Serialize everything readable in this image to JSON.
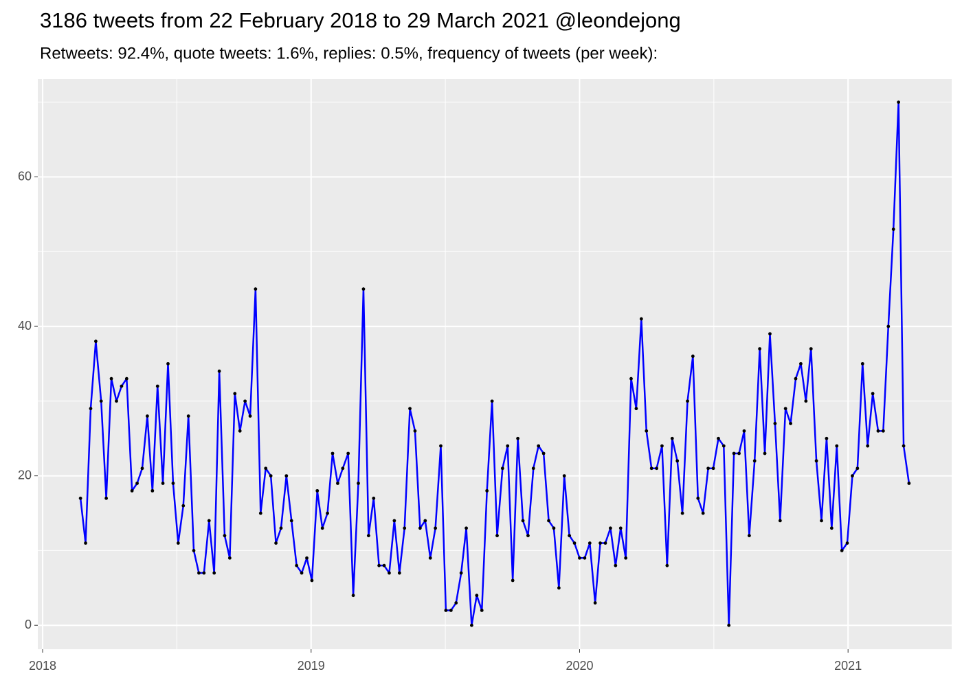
{
  "chart_data": {
    "type": "line",
    "title": "3186 tweets from 22 February 2018 to 29 March 2021 @leondejong",
    "subtitle": "Retweets: 92.4%, quote tweets: 1.6%, replies: 0.5%, frequency of tweets (per week):",
    "x": [
      2018.141,
      2018.16,
      2018.179,
      2018.198,
      2018.218,
      2018.237,
      2018.256,
      2018.275,
      2018.294,
      2018.313,
      2018.333,
      2018.352,
      2018.371,
      2018.39,
      2018.409,
      2018.428,
      2018.448,
      2018.467,
      2018.486,
      2018.505,
      2018.524,
      2018.543,
      2018.563,
      2018.582,
      2018.601,
      2018.62,
      2018.639,
      2018.658,
      2018.678,
      2018.697,
      2018.716,
      2018.735,
      2018.754,
      2018.773,
      2018.793,
      2018.812,
      2018.831,
      2018.85,
      2018.869,
      2018.888,
      2018.908,
      2018.927,
      2018.946,
      2018.965,
      2018.984,
      2019.003,
      2019.023,
      2019.042,
      2019.061,
      2019.08,
      2019.099,
      2019.118,
      2019.138,
      2019.157,
      2019.176,
      2019.195,
      2019.214,
      2019.233,
      2019.253,
      2019.272,
      2019.291,
      2019.31,
      2019.329,
      2019.348,
      2019.368,
      2019.387,
      2019.406,
      2019.425,
      2019.444,
      2019.463,
      2019.483,
      2019.502,
      2019.521,
      2019.54,
      2019.559,
      2019.578,
      2019.598,
      2019.617,
      2019.636,
      2019.655,
      2019.674,
      2019.693,
      2019.713,
      2019.732,
      2019.751,
      2019.77,
      2019.789,
      2019.808,
      2019.828,
      2019.847,
      2019.866,
      2019.885,
      2019.904,
      2019.923,
      2019.943,
      2019.962,
      2019.981,
      2020.0,
      2020.019,
      2020.038,
      2020.058,
      2020.077,
      2020.096,
      2020.115,
      2020.134,
      2020.153,
      2020.172,
      2020.192,
      2020.211,
      2020.23,
      2020.249,
      2020.268,
      2020.287,
      2020.307,
      2020.326,
      2020.345,
      2020.364,
      2020.383,
      2020.402,
      2020.422,
      2020.441,
      2020.46,
      2020.479,
      2020.498,
      2020.517,
      2020.537,
      2020.556,
      2020.575,
      2020.594,
      2020.613,
      2020.632,
      2020.652,
      2020.671,
      2020.69,
      2020.709,
      2020.728,
      2020.747,
      2020.767,
      2020.786,
      2020.805,
      2020.824,
      2020.843,
      2020.862,
      2020.882,
      2020.901,
      2020.92,
      2020.939,
      2020.958,
      2020.977,
      2020.997,
      2021.016,
      2021.035,
      2021.054,
      2021.073,
      2021.092,
      2021.112,
      2021.131,
      2021.15,
      2021.169,
      2021.188,
      2021.207,
      2021.227
    ],
    "values": [
      17,
      11,
      29,
      38,
      30,
      17,
      33,
      30,
      32,
      33,
      18,
      19,
      21,
      28,
      18,
      32,
      19,
      35,
      19,
      11,
      16,
      28,
      10,
      7,
      7,
      14,
      7,
      34,
      12,
      9,
      31,
      26,
      30,
      28,
      45,
      15,
      21,
      20,
      11,
      13,
      20,
      14,
      8,
      7,
      9,
      6,
      18,
      13,
      15,
      23,
      19,
      21,
      23,
      4,
      19,
      45,
      12,
      17,
      8,
      8,
      7,
      14,
      7,
      13,
      29,
      26,
      13,
      14,
      9,
      13,
      24,
      2,
      2,
      3,
      7,
      13,
      0,
      4,
      2,
      18,
      30,
      12,
      21,
      24,
      6,
      25,
      14,
      12,
      21,
      24,
      23,
      14,
      13,
      5,
      20,
      12,
      11,
      9,
      9,
      11,
      3,
      11,
      11,
      13,
      8,
      13,
      9,
      33,
      29,
      41,
      26,
      21,
      21,
      24,
      8,
      25,
      22,
      15,
      30,
      36,
      17,
      15,
      21,
      21,
      25,
      24,
      0,
      23,
      23,
      26,
      12,
      22,
      37,
      23,
      39,
      27,
      14,
      29,
      27,
      33,
      35,
      30,
      37,
      22,
      14,
      25,
      13,
      24,
      10,
      11,
      20,
      21,
      35,
      24,
      31,
      26,
      26,
      40,
      53,
      70,
      24,
      19
    ],
    "color": "#0000ff",
    "point_color": "#000000",
    "xlim": [
      2017.982,
      2021.386
    ],
    "xticks": [
      2018,
      2019,
      2020,
      2021
    ],
    "ylim": [
      -3.2,
      73.1
    ],
    "yticks": [
      0,
      20,
      40,
      60
    ],
    "grid": true
  }
}
